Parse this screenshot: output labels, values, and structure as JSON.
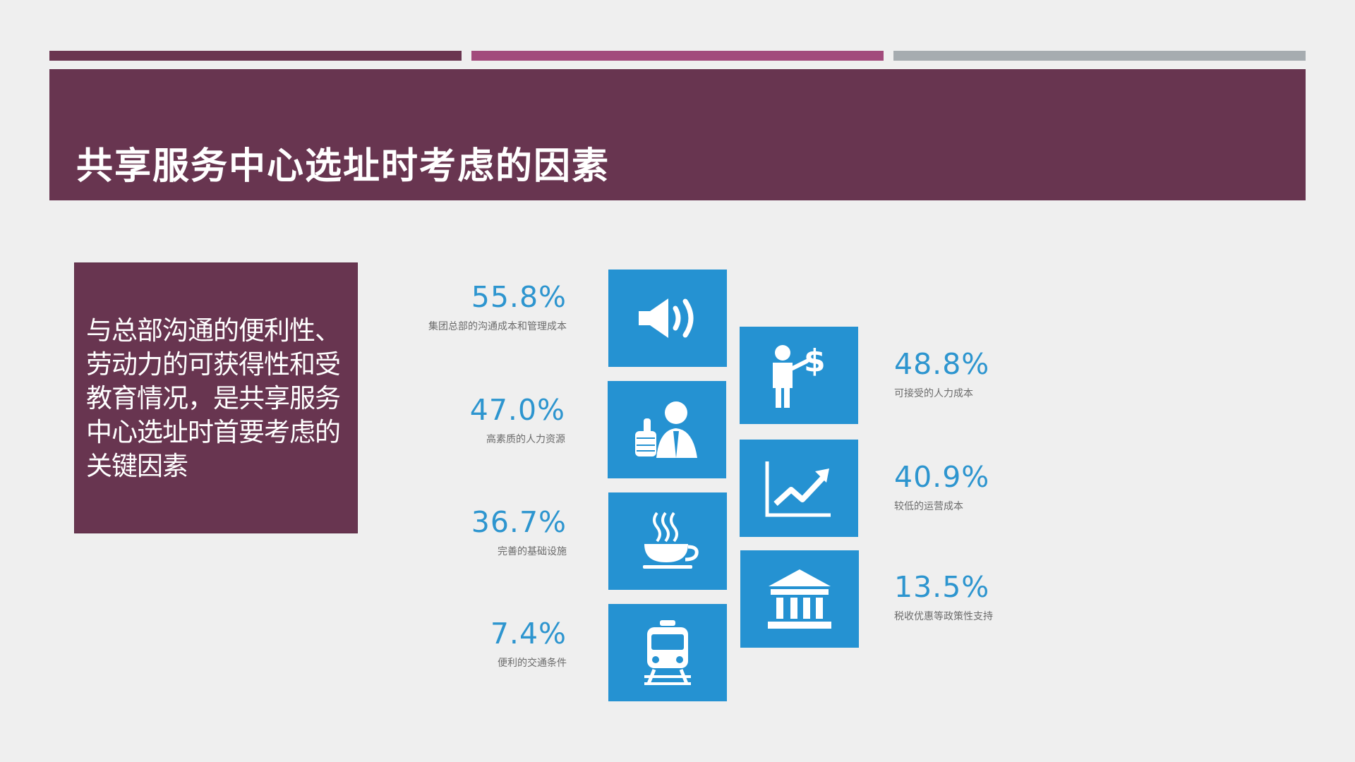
{
  "slide": {
    "title": "共享服务中心选址时考虑的因素",
    "note": "与总部沟通的便利性、劳动力的可获得性和受教育情况，是共享服务中心选址时首要考虑的关键因素"
  },
  "factors_left": [
    {
      "percent": "55.8%",
      "label": "集团总部的沟通成本和管理成本",
      "icon": "speaker-icon"
    },
    {
      "percent": "47.0%",
      "label": "高素质的人力资源",
      "icon": "thumbs-up-person-icon"
    },
    {
      "percent": "36.7%",
      "label": "完善的基础设施",
      "icon": "coffee-cup-icon"
    },
    {
      "percent": "7.4%",
      "label": "便利的交通条件",
      "icon": "train-icon"
    }
  ],
  "factors_right": [
    {
      "percent": "48.8%",
      "label": "可接受的人力成本",
      "icon": "businessman-dollar-icon"
    },
    {
      "percent": "40.9%",
      "label": "较低的运营成本",
      "icon": "rising-chart-icon"
    },
    {
      "percent": "13.5%",
      "label": "税收优惠等政策性支持",
      "icon": "bank-building-icon"
    }
  ],
  "colors": {
    "accent_purple": "#683550",
    "accent_pink": "#a24b7c",
    "accent_gray": "#a6acb0",
    "tile_blue": "#2592d2",
    "percent_blue": "#2d95cf"
  }
}
